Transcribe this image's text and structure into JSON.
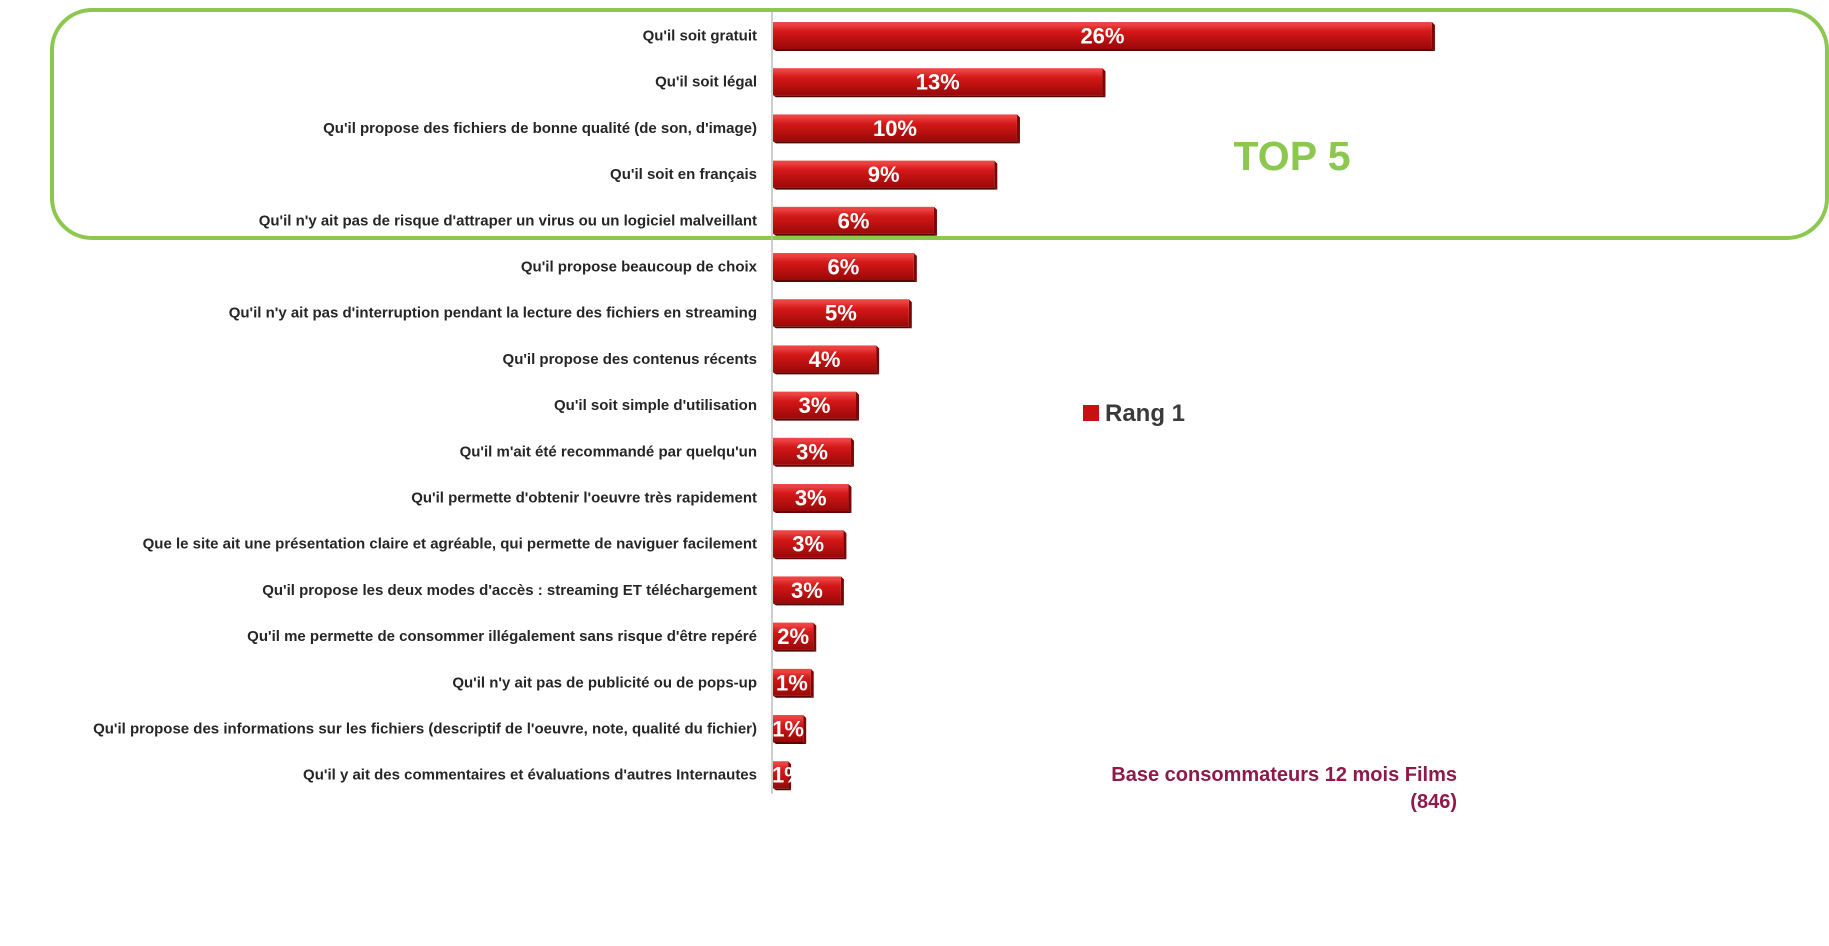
{
  "chart_data": {
    "type": "bar",
    "orientation": "horizontal",
    "categories": [
      "Qu'il soit gratuit",
      "Qu'il soit légal",
      "Qu'il propose des fichiers de bonne qualité (de son, d'image)",
      "Qu'il soit en français",
      "Qu'il n'y ait pas de risque d'attraper un virus ou un logiciel malveillant",
      "Qu'il propose beaucoup de choix",
      "Qu'il n'y ait pas d'interruption pendant la lecture des fichiers en streaming",
      "Qu'il propose des contenus récents",
      "Qu'il soit simple d'utilisation",
      "Qu'il m'ait été recommandé par quelqu'un",
      "Qu'il permette d'obtenir l'oeuvre très rapidement",
      "Que le site ait une présentation claire et agréable, qui permette de naviguer facilement",
      "Qu'il propose les deux modes d'accès : streaming ET téléchargement",
      "Qu'il me permette de consommer illégalement sans risque d'être repéré",
      "Qu'il n'y ait pas de publicité ou de pops-up",
      "Qu'il propose des informations sur les fichiers (descriptif de l'oeuvre, note, qualité du fichier)",
      "Qu'il y ait des commentaires et évaluations d'autres Internautes"
    ],
    "series": [
      {
        "name": "Rang 1",
        "values": [
          26.2,
          13.1,
          9.7,
          8.8,
          6.4,
          5.6,
          5.4,
          4.1,
          3.3,
          3.1,
          3.0,
          2.8,
          2.7,
          1.6,
          1.5,
          1.2,
          0.6
        ],
        "labels": [
          "26%",
          "13%",
          "10%",
          "9%",
          "6%",
          "6%",
          "5%",
          "4%",
          "3%",
          "3%",
          "3%",
          "3%",
          "3%",
          "2%",
          "1%",
          "1%",
          "1%"
        ]
      }
    ],
    "xlim": [
      0,
      30
    ],
    "grid": false,
    "legend": "right",
    "highlight": {
      "label": "TOP 5",
      "count": 5
    },
    "note_line1": "Base consommateurs 12 mois Films",
    "note_line2": "(846)"
  },
  "colors": {
    "bar": "#c81010",
    "bar_light": "#ee4040",
    "bar_dark": "#7a0606",
    "highlight_border": "#8cc850",
    "highlight_text": "#8cc850",
    "note_text": "#8e1a4c",
    "value_text_inside": "#ffffff",
    "value_text_outside": "#555555",
    "category_text": "#262626"
  }
}
